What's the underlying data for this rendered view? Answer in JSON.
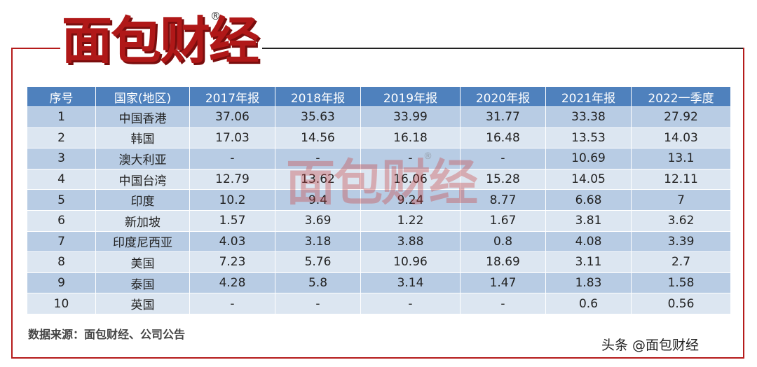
{
  "brand": {
    "logo_text": "面包财经",
    "registered_mark": "®"
  },
  "watermark": {
    "text": "面包财经",
    "registered_mark": "®"
  },
  "table": {
    "headers": [
      "序号",
      "国家(地区)",
      "2017年报",
      "2018年报",
      "2019年报",
      "2020年报",
      "2021年报",
      "2022一季度"
    ],
    "rows": [
      [
        "1",
        "中国香港",
        "37.06",
        "35.63",
        "33.99",
        "31.77",
        "33.38",
        "27.92"
      ],
      [
        "2",
        "韩国",
        "17.03",
        "14.56",
        "16.18",
        "16.48",
        "13.53",
        "14.03"
      ],
      [
        "3",
        "澳大利亚",
        "-",
        "-",
        "-",
        "-",
        "10.69",
        "13.1"
      ],
      [
        "4",
        "中国台湾",
        "12.79",
        "13.62",
        "16.06",
        "15.28",
        "14.05",
        "12.11"
      ],
      [
        "5",
        "印度",
        "10.2",
        "9.4",
        "9.24",
        "8.77",
        "6.68",
        "7"
      ],
      [
        "6",
        "新加坡",
        "1.57",
        "3.69",
        "1.22",
        "1.67",
        "3.81",
        "3.62"
      ],
      [
        "7",
        "印度尼西亚",
        "4.03",
        "3.18",
        "3.88",
        "0.8",
        "4.08",
        "3.39"
      ],
      [
        "8",
        "美国",
        "7.23",
        "5.76",
        "10.96",
        "18.69",
        "3.11",
        "2.7"
      ],
      [
        "9",
        "泰国",
        "4.28",
        "5.8",
        "3.14",
        "1.47",
        "1.83",
        "1.58"
      ],
      [
        "10",
        "英国",
        "-",
        "-",
        "-",
        "-",
        "0.6",
        "0.56"
      ]
    ]
  },
  "source_note": "数据来源：面包财经、公司公告",
  "credit": "头条 @面包财经",
  "colors": {
    "brand_red": "#b01818",
    "header_blue": "#4f81bd",
    "row_dark": "#b8cce4",
    "row_light": "#dce6f1"
  }
}
